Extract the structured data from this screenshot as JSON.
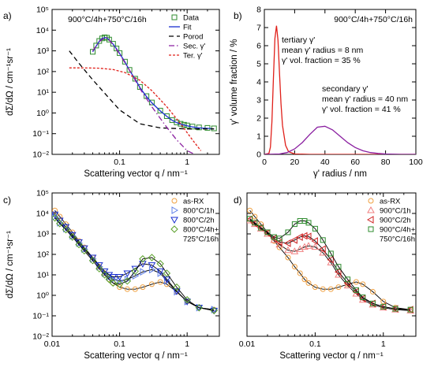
{
  "chart_data": [
    {
      "panel": "a)",
      "type": "scatter",
      "annotation": "900°C/4h+750°C/16h",
      "xlabel": "Scattering vector q / nm⁻¹",
      "ylabel": "dΣ/dΩ / cm⁻¹sr⁻¹",
      "xscale": "log",
      "yscale": "log",
      "xlim": [
        0.01,
        3
      ],
      "ylim": [
        0.01,
        100000
      ],
      "xticks": [
        {
          "v": 0.1,
          "t": "0.1"
        },
        {
          "v": 1,
          "t": "1"
        }
      ],
      "yticks": [
        {
          "v": 0.01,
          "t": "10⁻²"
        },
        {
          "v": 0.1,
          "t": "10⁻¹"
        },
        {
          "v": 1,
          "t": "10⁰"
        },
        {
          "v": 10,
          "t": "10¹"
        },
        {
          "v": 100,
          "t": "10²"
        },
        {
          "v": 1000,
          "t": "10³"
        },
        {
          "v": 10000,
          "t": "10⁴"
        },
        {
          "v": 100000,
          "t": "10⁵"
        }
      ],
      "legend_position": "top-right",
      "series": [
        {
          "name": "Data",
          "kind": "markers",
          "marker": "square",
          "color": "#2e8b2e",
          "x": [
            0.04,
            0.045,
            0.05,
            0.055,
            0.06,
            0.065,
            0.07,
            0.08,
            0.09,
            0.1,
            0.12,
            0.14,
            0.17,
            0.2,
            0.25,
            0.3,
            0.4,
            0.5,
            0.6,
            0.7,
            0.8,
            0.9,
            1.0,
            1.2,
            1.5,
            2.0,
            2.5
          ],
          "y": [
            900,
            1800,
            3000,
            4000,
            4500,
            4300,
            3500,
            2200,
            1300,
            780,
            300,
            120,
            45,
            18,
            6.5,
            3.2,
            1.3,
            0.7,
            0.45,
            0.35,
            0.3,
            0.27,
            0.25,
            0.22,
            0.2,
            0.19,
            0.18
          ]
        },
        {
          "name": "Fit",
          "kind": "line",
          "color": "#1a2fd0",
          "dash": "",
          "x": [
            0.04,
            0.045,
            0.05,
            0.055,
            0.06,
            0.065,
            0.07,
            0.08,
            0.09,
            0.1,
            0.12,
            0.14,
            0.17,
            0.2,
            0.25,
            0.3,
            0.4,
            0.5,
            0.6,
            0.7,
            0.8,
            0.9,
            1.0,
            1.2,
            1.5,
            2.0,
            2.5
          ],
          "y": [
            900,
            1700,
            2900,
            3900,
            4400,
            4200,
            3400,
            2100,
            1250,
            750,
            290,
            115,
            43,
            17,
            6.2,
            3.1,
            1.25,
            0.68,
            0.44,
            0.34,
            0.29,
            0.26,
            0.24,
            0.21,
            0.19,
            0.18,
            0.17
          ]
        },
        {
          "name": "Porod",
          "kind": "line",
          "color": "#000000",
          "dash": "6,4",
          "x": [
            0.018,
            0.025,
            0.04,
            0.06,
            0.1,
            0.2,
            0.4,
            1.0,
            2.5
          ],
          "y": [
            1000,
            250,
            40,
            9,
            1.4,
            0.3,
            0.19,
            0.17,
            0.17
          ]
        },
        {
          "name": "Sec. γ'",
          "kind": "line",
          "color": "#8a1fa0",
          "dash": "7,3,1.5,3",
          "x": [
            0.04,
            0.05,
            0.06,
            0.065,
            0.07,
            0.08,
            0.1,
            0.15,
            0.2,
            0.3,
            0.5,
            0.7,
            1.0,
            1.3
          ],
          "y": [
            1000,
            2800,
            4300,
            4200,
            3400,
            2000,
            700,
            80,
            15,
            2,
            0.2,
            0.05,
            0.015,
            0.01
          ]
        },
        {
          "name": "Ter. γ'",
          "kind": "line",
          "color": "#e0201a",
          "dash": "3,2",
          "x": [
            0.018,
            0.03,
            0.05,
            0.08,
            0.12,
            0.2,
            0.3,
            0.5,
            0.8,
            1.2,
            1.6
          ],
          "y": [
            150,
            150,
            145,
            125,
            90,
            38,
            12,
            2,
            0.3,
            0.05,
            0.015
          ]
        }
      ]
    },
    {
      "panel": "b)",
      "type": "line",
      "annotation": "900°C/4h+750°C/16h",
      "xlabel": "γ' radius / nm",
      "ylabel": "γ' volume fraction / %",
      "xscale": "linear",
      "yscale": "linear",
      "xlim": [
        0,
        100
      ],
      "ylim": [
        0,
        8
      ],
      "xticks": [
        {
          "v": 0,
          "t": "0"
        },
        {
          "v": 20,
          "t": "20"
        },
        {
          "v": 40,
          "t": "40"
        },
        {
          "v": 60,
          "t": "60"
        },
        {
          "v": 80,
          "t": "80"
        },
        {
          "v": 100,
          "t": "100"
        }
      ],
      "yticks": [
        {
          "v": 0,
          "t": "0"
        },
        {
          "v": 1,
          "t": "1"
        },
        {
          "v": 2,
          "t": "2"
        },
        {
          "v": 3,
          "t": "3"
        },
        {
          "v": 4,
          "t": "4"
        },
        {
          "v": 5,
          "t": "5"
        },
        {
          "v": 6,
          "t": "6"
        },
        {
          "v": 7,
          "t": "7"
        },
        {
          "v": 8,
          "t": "8"
        }
      ],
      "notes": [
        {
          "lines": [
            "tertiary γ'",
            "mean γ' radius = 8 nm",
            "γ' vol. fraction = 35 %"
          ]
        },
        {
          "lines": [
            "secondary γ'",
            "mean γ' radius = 40 nm",
            "γ' vol. fraction = 41 %"
          ]
        }
      ],
      "series": [
        {
          "kind": "line",
          "color": "#e0201a",
          "x": [
            0,
            3,
            4,
            5,
            6,
            7,
            8,
            9,
            10,
            11,
            12,
            14,
            16,
            20,
            30,
            100
          ],
          "y": [
            0,
            0.05,
            0.4,
            1.8,
            4.2,
            6.4,
            7.1,
            6.3,
            4.5,
            2.8,
            1.6,
            0.5,
            0.15,
            0.02,
            0,
            0
          ]
        },
        {
          "kind": "line",
          "color": "#8a1fa0",
          "x": [
            0,
            10,
            15,
            20,
            25,
            30,
            35,
            40,
            45,
            50,
            55,
            60,
            65,
            70,
            75,
            80,
            90,
            100
          ],
          "y": [
            0,
            0.02,
            0.1,
            0.3,
            0.65,
            1.1,
            1.5,
            1.55,
            1.35,
            1.0,
            0.65,
            0.38,
            0.2,
            0.1,
            0.05,
            0.02,
            0,
            0
          ]
        }
      ]
    },
    {
      "panel": "c)",
      "type": "scatter",
      "xlabel": "Scattering vector q / nm⁻¹",
      "ylabel": "dΣ/dΩ / cm⁻¹sr⁻¹",
      "xscale": "log",
      "yscale": "log",
      "xlim": [
        0.01,
        3
      ],
      "ylim": [
        0.01,
        100000
      ],
      "xticks": [
        {
          "v": 0.01,
          "t": "0.01"
        },
        {
          "v": 0.1,
          "t": "0.1"
        },
        {
          "v": 1,
          "t": "1"
        }
      ],
      "yticks": [
        {
          "v": 0.01,
          "t": "10⁻²"
        },
        {
          "v": 0.1,
          "t": "10⁻¹"
        },
        {
          "v": 1,
          "t": "10⁰"
        },
        {
          "v": 10,
          "t": "10¹"
        },
        {
          "v": 100,
          "t": "10²"
        },
        {
          "v": 1000,
          "t": "10³"
        },
        {
          "v": 10000,
          "t": "10⁴"
        },
        {
          "v": 100000,
          "t": "10⁵"
        }
      ],
      "legend_position": "top-right",
      "series": [
        {
          "name": "as-RX",
          "marker": "circle",
          "color": "#f0a040",
          "x": [
            0.011,
            0.013,
            0.016,
            0.02,
            0.025,
            0.03,
            0.04,
            0.05,
            0.06,
            0.07,
            0.08,
            0.1,
            0.13,
            0.17,
            0.22,
            0.3,
            0.4,
            0.5,
            0.7,
            1.0,
            1.5,
            2.5
          ],
          "y": [
            14000,
            7000,
            3000,
            1200,
            450,
            220,
            70,
            25,
            12,
            6,
            4,
            2.5,
            2,
            2,
            2.5,
            3.5,
            4.5,
            3.5,
            1.5,
            0.5,
            0.25,
            0.2
          ]
        },
        {
          "name": "800°C/1h",
          "marker": "tri-right",
          "color": "#6080e8",
          "x": [
            0.011,
            0.013,
            0.016,
            0.02,
            0.025,
            0.03,
            0.04,
            0.05,
            0.06,
            0.07,
            0.08,
            0.1,
            0.13,
            0.17,
            0.22,
            0.3,
            0.4,
            0.5,
            0.7,
            1.0,
            1.5,
            2.5
          ],
          "y": [
            7000,
            3500,
            1800,
            800,
            350,
            180,
            60,
            25,
            12,
            8,
            6,
            5,
            6,
            9,
            14,
            18,
            12,
            5,
            1.5,
            0.5,
            0.25,
            0.2
          ]
        },
        {
          "name": "800°C/2h",
          "marker": "tri-down",
          "color": "#1a2fd0",
          "x": [
            0.011,
            0.013,
            0.016,
            0.02,
            0.025,
            0.03,
            0.04,
            0.05,
            0.06,
            0.07,
            0.08,
            0.1,
            0.13,
            0.17,
            0.22,
            0.3,
            0.4,
            0.5,
            0.7,
            1.0,
            1.5,
            2.5
          ],
          "y": [
            9000,
            4500,
            2200,
            900,
            400,
            200,
            70,
            30,
            15,
            10,
            8,
            8,
            12,
            20,
            35,
            30,
            15,
            6,
            1.6,
            0.5,
            0.25,
            0.18
          ]
        },
        {
          "name": "800°C/4h+ 725°C/16h",
          "marker": "diamond",
          "color": "#5aa02a",
          "x": [
            0.011,
            0.013,
            0.016,
            0.02,
            0.025,
            0.03,
            0.04,
            0.05,
            0.06,
            0.07,
            0.08,
            0.1,
            0.13,
            0.17,
            0.22,
            0.3,
            0.4,
            0.5,
            0.7,
            1.0,
            1.5,
            2.5
          ],
          "y": [
            6000,
            3200,
            1600,
            700,
            300,
            150,
            50,
            20,
            10,
            6,
            4,
            3.5,
            5,
            15,
            60,
            70,
            35,
            12,
            2.5,
            0.6,
            0.25,
            0.18
          ]
        }
      ]
    },
    {
      "panel": "d)",
      "type": "scatter",
      "xlabel": "Scattering vector q / nm⁻¹",
      "ylabel": "",
      "xscale": "log",
      "yscale": "log",
      "xlim": [
        0.01,
        3
      ],
      "ylim": [
        0.01,
        100000
      ],
      "xticks": [
        {
          "v": 0.01,
          "t": "0.01"
        },
        {
          "v": 0.1,
          "t": "0.1"
        },
        {
          "v": 1,
          "t": "1"
        }
      ],
      "yticks": [],
      "legend_position": "top-right",
      "series": [
        {
          "name": "as-RX",
          "marker": "circle",
          "color": "#f0a040",
          "x": [
            0.011,
            0.013,
            0.016,
            0.02,
            0.025,
            0.03,
            0.04,
            0.05,
            0.06,
            0.07,
            0.08,
            0.1,
            0.13,
            0.17,
            0.22,
            0.3,
            0.4,
            0.5,
            0.7,
            1.0,
            1.5,
            2.5
          ],
          "y": [
            14000,
            7000,
            3000,
            1200,
            450,
            220,
            70,
            25,
            12,
            6,
            4,
            2.5,
            2,
            2,
            2.5,
            3.5,
            4.5,
            3.5,
            1.5,
            0.5,
            0.25,
            0.2
          ]
        },
        {
          "name": "900°C/1h",
          "marker": "tri-up",
          "color": "#f08080",
          "x": [
            0.011,
            0.013,
            0.016,
            0.02,
            0.025,
            0.03,
            0.04,
            0.05,
            0.06,
            0.07,
            0.08,
            0.1,
            0.13,
            0.17,
            0.22,
            0.3,
            0.4,
            0.5,
            0.7,
            1.0,
            1.5,
            2.5
          ],
          "y": [
            4500,
            3000,
            1800,
            1000,
            500,
            300,
            160,
            140,
            180,
            230,
            260,
            230,
            120,
            40,
            10,
            3,
            1.2,
            0.6,
            0.35,
            0.25,
            0.2,
            0.18
          ]
        },
        {
          "name": "900°C/2h",
          "marker": "tri-left",
          "color": "#d02020",
          "x": [
            0.011,
            0.013,
            0.016,
            0.02,
            0.025,
            0.03,
            0.04,
            0.05,
            0.06,
            0.07,
            0.08,
            0.1,
            0.13,
            0.17,
            0.22,
            0.3,
            0.4,
            0.5,
            0.7,
            1.0,
            1.5,
            2.5
          ],
          "y": [
            5000,
            3200,
            2000,
            1100,
            600,
            400,
            350,
            500,
            700,
            800,
            750,
            450,
            180,
            55,
            14,
            4,
            1.5,
            0.7,
            0.4,
            0.28,
            0.22,
            0.2
          ]
        },
        {
          "name": "900°C/4h+ 750°C/16h",
          "marker": "square",
          "color": "#2e8b2e",
          "x": [
            0.011,
            0.013,
            0.016,
            0.02,
            0.025,
            0.03,
            0.04,
            0.05,
            0.06,
            0.07,
            0.08,
            0.1,
            0.13,
            0.17,
            0.22,
            0.3,
            0.4,
            0.5,
            0.7,
            1.0,
            1.5,
            2.5
          ],
          "y": [
            5500,
            3500,
            2000,
            1200,
            700,
            600,
            1200,
            3000,
            4300,
            4300,
            3500,
            1800,
            500,
            110,
            25,
            6,
            1.8,
            0.8,
            0.4,
            0.28,
            0.22,
            0.2
          ]
        }
      ]
    }
  ]
}
